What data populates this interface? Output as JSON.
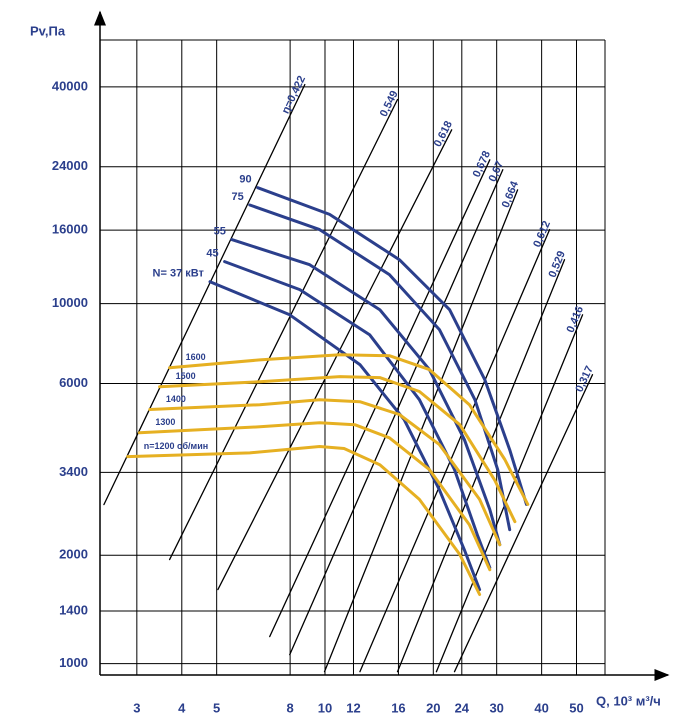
{
  "chart_data": {
    "type": "line",
    "y_label": "Pv,Па",
    "x_label": "Q, 10³ м³/ч",
    "log_x": true,
    "log_y": true,
    "grid": true,
    "xlim": [
      2.37,
      60
    ],
    "ylim": [
      930,
      54000
    ],
    "xticks": [
      3,
      4,
      5,
      8,
      10,
      12,
      16,
      20,
      24,
      30,
      40,
      50
    ],
    "yticks": [
      1000,
      1400,
      2000,
      3400,
      6000,
      10000,
      16000,
      24000,
      40000
    ],
    "series": [
      {
        "name": "η=0,422",
        "color": "#000000",
        "x": [
          2.43,
          8.79
        ],
        "values": [
          2766,
          40600
        ]
      },
      {
        "name": "0,549",
        "color": "#000000",
        "x": [
          3.7,
          15.9
        ],
        "values": [
          1945,
          36900
        ]
      },
      {
        "name": "0,618",
        "color": "#000000",
        "x": [
          5.04,
          22.5
        ],
        "values": [
          1606,
          30400
        ]
      },
      {
        "name": "0,678",
        "color": "#000000",
        "x": [
          7.02,
          28.7
        ],
        "values": [
          1189,
          25100
        ]
      },
      {
        "name": "0,67",
        "color": "#000000",
        "x": [
          7.98,
          31.2
        ],
        "values": [
          1059,
          23550
        ]
      },
      {
        "name": "0,664",
        "color": "#000000",
        "x": [
          9.97,
          34.3
        ],
        "values": [
          950,
          20700
        ]
      },
      {
        "name": "0,612",
        "color": "#000000",
        "x": [
          12.5,
          42.1
        ],
        "values": [
          950,
          16060
        ]
      },
      {
        "name": "0,529",
        "color": "#000000",
        "x": [
          15.9,
          46.3
        ],
        "values": [
          950,
          13250
        ]
      },
      {
        "name": "0,416",
        "color": "#000000",
        "x": [
          20.4,
          52.0
        ],
        "values": [
          950,
          9310
        ]
      },
      {
        "name": "0,317",
        "color": "#000000",
        "x": [
          22.9,
          55.4
        ],
        "values": [
          950,
          6350
        ]
      },
      {
        "name": "90",
        "color": "#2b3f8c",
        "x": [
          6.5,
          10.3,
          16.1,
          22.2,
          27.8,
          32.6,
          36.3
        ],
        "values": [
          21000,
          17700,
          13250,
          9620,
          6150,
          3930,
          2770
        ]
      },
      {
        "name": "75",
        "color": "#2b3f8c",
        "x": [
          6.18,
          9.66,
          15.1,
          20.8,
          26.1,
          30.2,
          32.6
        ],
        "values": [
          18800,
          16060,
          12040,
          8470,
          5410,
          3460,
          2355
        ]
      },
      {
        "name": "55",
        "color": "#2b3f8c",
        "x": [
          5.51,
          9.07,
          14.2,
          19.5,
          24.4,
          28.7,
          30.6
        ],
        "values": [
          15060,
          12830,
          9620,
          6560,
          4190,
          2680,
          2140
        ]
      },
      {
        "name": "45",
        "color": "#2b3f8c",
        "x": [
          5.26,
          8.51,
          13.3,
          18.3,
          22.9,
          26.5,
          28.7
        ],
        "values": [
          13090,
          10940,
          8200,
          5410,
          3460,
          2280,
          1849
        ]
      },
      {
        "name": "N= 37 кВт",
        "color": "#2b3f8c",
        "x": [
          4.79,
          7.98,
          12.5,
          16.6,
          20.8,
          24.4,
          26.9
        ],
        "values": [
          11510,
          9310,
          6770,
          4760,
          3040,
          2070,
          1606
        ]
      },
      {
        "name": "1600",
        "color": "#e6b022",
        "x": [
          3.7,
          6.59,
          11.0,
          15.1,
          19.5,
          25.2,
          31.6,
          36.6
        ],
        "values": [
          6640,
          6980,
          7210,
          7170,
          6560,
          5240,
          3690,
          2770
        ]
      },
      {
        "name": "1500",
        "color": "#e6b022",
        "x": [
          3.47,
          6.59,
          11.0,
          14.2,
          18.3,
          23.7,
          29.6,
          33.7
        ],
        "values": [
          5880,
          6070,
          6270,
          6230,
          5700,
          4610,
          3240,
          2480
        ]
      },
      {
        "name": "1400",
        "color": "#e6b022",
        "x": [
          3.26,
          6.59,
          9.66,
          12.5,
          16.1,
          20.8,
          26.9,
          30.6
        ],
        "values": [
          5080,
          5240,
          5410,
          5340,
          4920,
          4060,
          2860,
          2140
        ]
      },
      {
        "name": "1300",
        "color": "#e6b022",
        "x": [
          3.05,
          6.59,
          9.66,
          12.1,
          15.1,
          19.5,
          25.2,
          28.7
        ],
        "values": [
          4380,
          4550,
          4670,
          4610,
          4240,
          3460,
          2430,
          1824
        ]
      },
      {
        "name": "n=1200 об/мин",
        "color": "#e6b022",
        "x": [
          2.83,
          6.18,
          9.66,
          11.3,
          14.2,
          18.3,
          23.7,
          26.9
        ],
        "values": [
          3760,
          3850,
          4010,
          3960,
          3570,
          2860,
          2010,
          1556
        ]
      }
    ]
  }
}
